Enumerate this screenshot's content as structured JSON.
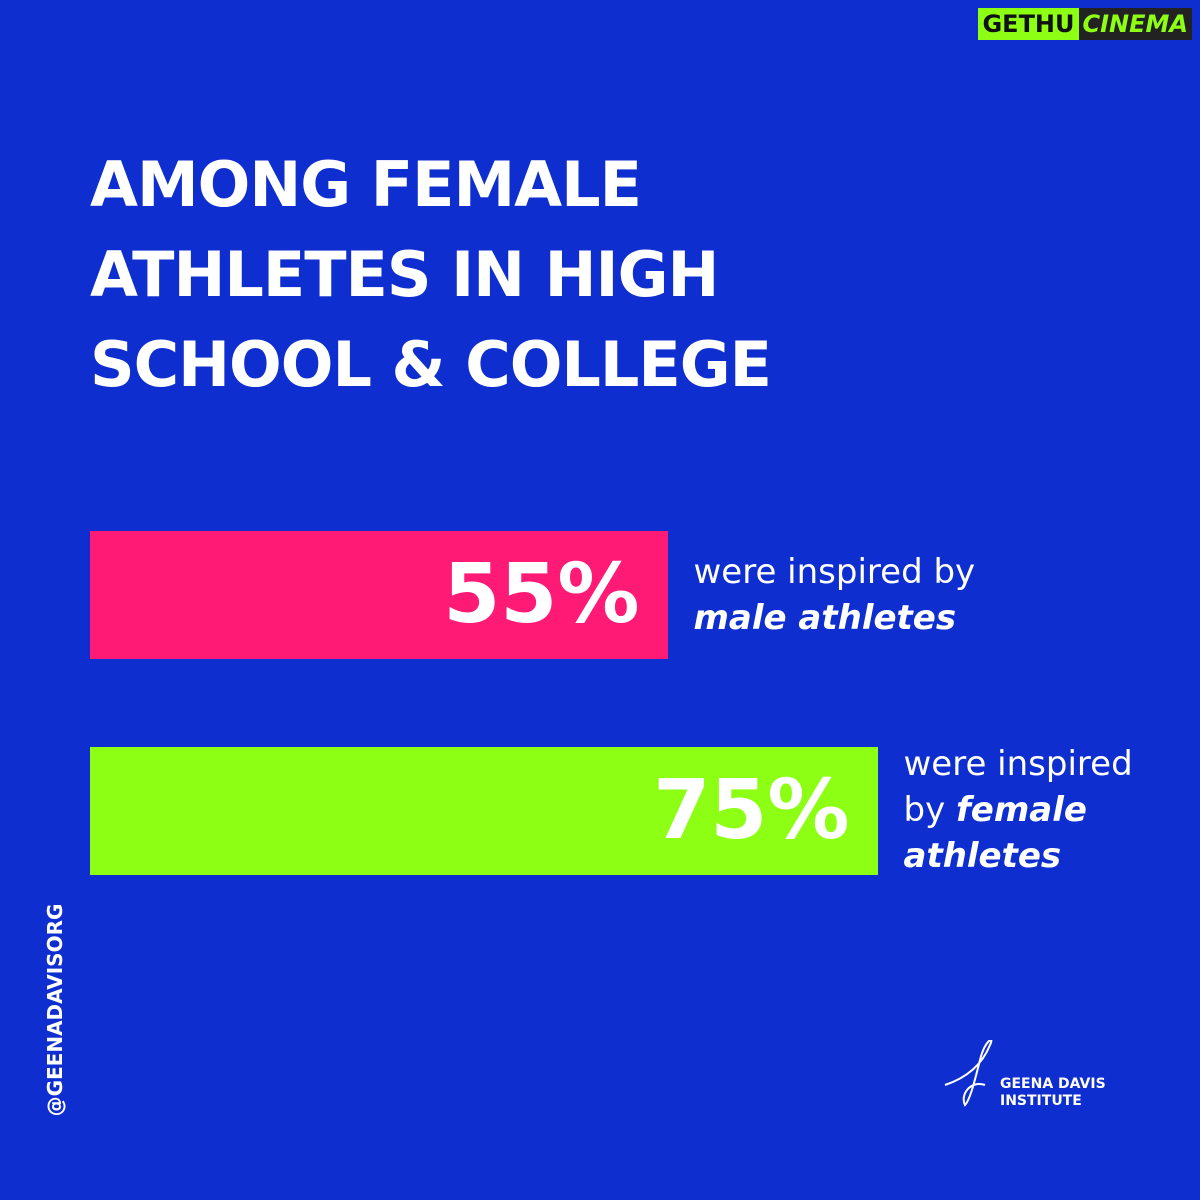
{
  "chart_data": {
    "type": "bar",
    "orientation": "horizontal",
    "title": [
      "AMONG FEMALE",
      "ATHLETES IN HIGH",
      "SCHOOL & COLLEGE"
    ],
    "categories": [
      {
        "plain": "were inspired by",
        "emphasis": "male athletes"
      },
      {
        "plain": "were inspired by",
        "emphasis": "female athletes"
      }
    ],
    "values": [
      55,
      75
    ],
    "value_labels": [
      "55%",
      "75%"
    ],
    "colors": [
      "#ff1a75",
      "#8cff14"
    ],
    "xlim": [
      0,
      100
    ]
  },
  "handle": "@GEENADAVISORG",
  "logo": [
    "GEENA DAVIS",
    "INSTITUTE"
  ],
  "watermark": [
    "GETHU",
    "CINEMA"
  ]
}
